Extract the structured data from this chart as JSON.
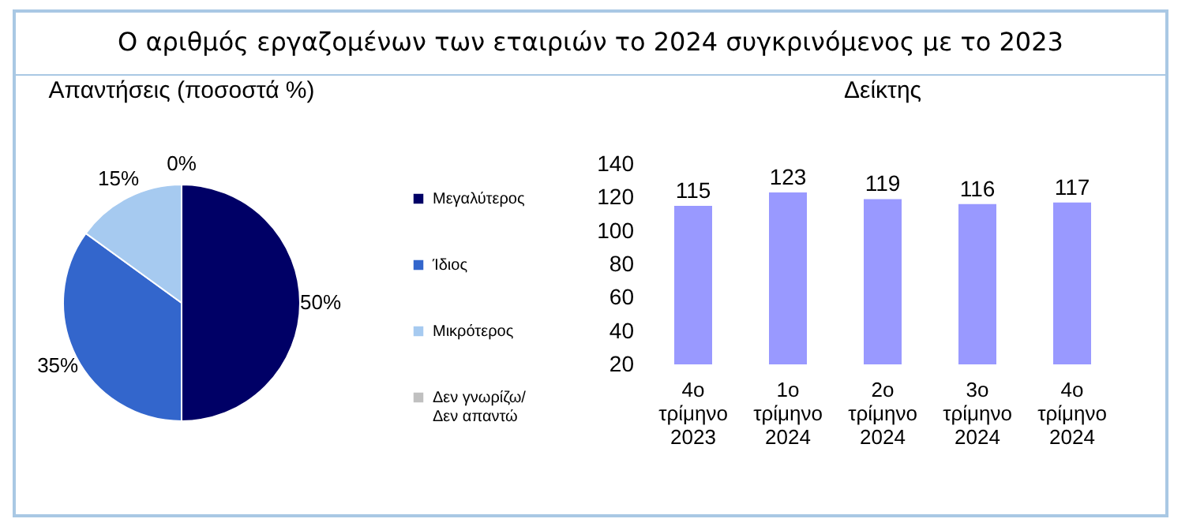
{
  "chart_data": [
    {
      "type": "pie",
      "title": "Ο αριθμός εργαζομένων των εταιριών το 2024 συγκρινόμενος με το 2023",
      "subtitle": "Απαντήσεις (ποσοστά %)",
      "categories": [
        "Μεγαλύτερος",
        "Ίδιος",
        "Μικρότερος",
        "Δεν γνωρίζω/ Δεν απαντώ"
      ],
      "values": [
        50,
        35,
        15,
        0
      ],
      "colors": [
        "#000066",
        "#3366cc",
        "#a6caf0",
        "#c0c0c0"
      ],
      "value_labels": [
        "50%",
        "35%",
        "15%",
        "0%"
      ],
      "legend": "right"
    },
    {
      "type": "bar",
      "title": "Δείκτης",
      "categories": [
        "4ο τρίμηνο 2023",
        "1ο τρίμηνο 2024",
        "2ο τρίμηνο 2024",
        "3ο τρίμηνο 2024",
        "4ο τρίμηνο 2024"
      ],
      "values": [
        115,
        123,
        119,
        116,
        117
      ],
      "color": "#9999ff",
      "ylim": [
        20,
        140
      ],
      "yticks": [
        20,
        40,
        60,
        80,
        100,
        120,
        140
      ],
      "data_labels": true,
      "grid": false
    }
  ]
}
